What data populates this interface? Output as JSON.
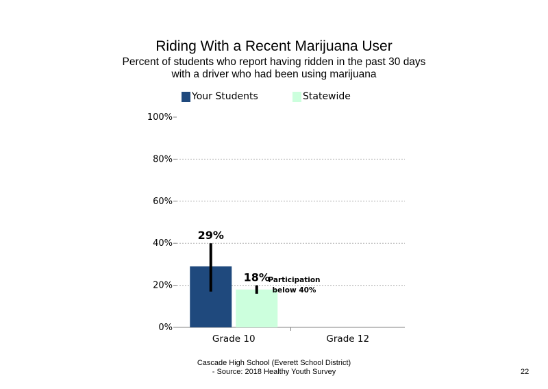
{
  "chart_data": {
    "type": "bar",
    "title": "Riding With a Recent Marijuana User",
    "subtitle": [
      "Percent of students who report having ridden in the past 30 days",
      "with a driver who had been using marijuana"
    ],
    "categories": [
      "Grade 10",
      "Grade 12"
    ],
    "series": [
      {
        "name": "Your Students",
        "color": "#1f497d",
        "values": [
          29,
          null
        ],
        "labels": [
          "29%",
          ""
        ],
        "error": [
          [
            17,
            40
          ],
          null
        ]
      },
      {
        "name": "Statewide",
        "color": "#ccffdd",
        "values": [
          18,
          null
        ],
        "labels": [
          "18%",
          ""
        ],
        "error": [
          [
            16,
            20
          ],
          null
        ]
      }
    ],
    "yticks": [
      "0%",
      "20%",
      "40%",
      "60%",
      "80%",
      "100%"
    ],
    "ylim": [
      0,
      100
    ],
    "grid": true,
    "legend": "top",
    "annotation": [
      "Participation",
      "below 40%"
    ]
  },
  "footer": {
    "line1": "Cascade High School (Everett School District)",
    "line2": "- Source: 2018 Healthy  Youth Survey"
  },
  "page_number": "22"
}
